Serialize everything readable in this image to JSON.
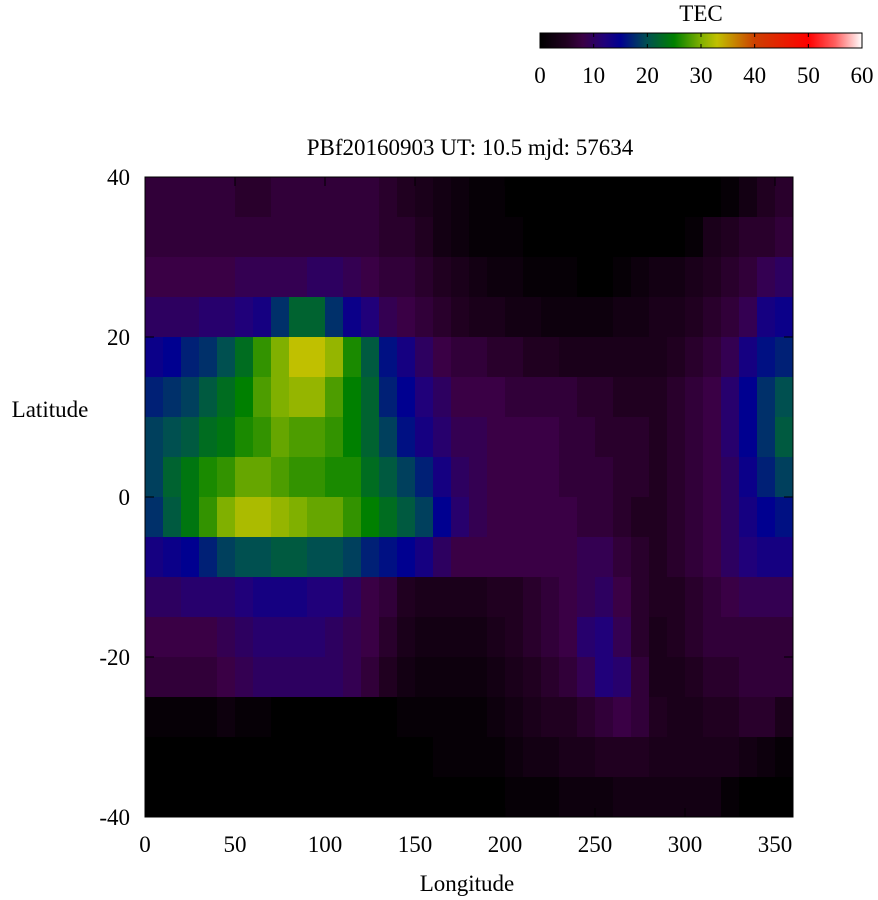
{
  "chart_data": {
    "type": "heatmap",
    "title": "PBf20160903  UT: 10.5  mjd: 57634",
    "xlabel": "Longitude",
    "ylabel": "Latitude",
    "xlim": [
      0,
      360
    ],
    "ylim": [
      -40,
      40
    ],
    "x_ticks": [
      "0",
      "50",
      "100",
      "150",
      "200",
      "250",
      "300",
      "350"
    ],
    "x_tick_values": [
      0,
      50,
      100,
      150,
      200,
      250,
      300,
      350
    ],
    "y_ticks": [
      "-40",
      "-20",
      "0",
      "20",
      "40"
    ],
    "y_tick_values": [
      -40,
      -20,
      0,
      20,
      40
    ],
    "grid": false,
    "colorbar": {
      "label": "TEC",
      "range": [
        0,
        60
      ],
      "ticks": [
        "0",
        "10",
        "20",
        "30",
        "40",
        "50",
        "60"
      ],
      "tick_values": [
        0,
        10,
        20,
        30,
        40,
        50,
        60
      ],
      "placement": "top-right",
      "colormap": [
        [
          0,
          "#000000"
        ],
        [
          5,
          "#200020"
        ],
        [
          8,
          "#3a0045"
        ],
        [
          12,
          "#20007a"
        ],
        [
          15,
          "#000090"
        ],
        [
          20,
          "#005050"
        ],
        [
          25,
          "#008000"
        ],
        [
          30,
          "#80b000"
        ],
        [
          33,
          "#c0c000"
        ],
        [
          40,
          "#cc4000"
        ],
        [
          50,
          "#ff0000"
        ],
        [
          55,
          "#ff6060"
        ],
        [
          60,
          "#ffffff"
        ]
      ]
    },
    "lon": [
      5,
      15,
      25,
      35,
      45,
      55,
      65,
      75,
      85,
      95,
      105,
      115,
      125,
      135,
      145,
      155,
      165,
      175,
      185,
      195,
      205,
      215,
      225,
      235,
      245,
      255,
      265,
      275,
      285,
      295,
      305,
      315,
      325,
      335,
      345,
      355
    ],
    "lat": [
      37.5,
      32.5,
      27.5,
      22.5,
      17.5,
      12.5,
      7.5,
      2.5,
      -2.5,
      -7.5,
      -12.5,
      -17.5,
      -22.5,
      -27.5,
      -32.5,
      -37.5
    ],
    "values": [
      [
        7,
        7,
        7,
        7,
        7,
        6,
        6,
        7,
        7,
        7,
        7,
        7,
        7,
        6,
        5,
        4,
        3,
        2,
        1,
        1,
        0,
        0,
        0,
        0,
        0,
        0,
        0,
        0,
        0,
        0,
        0,
        0,
        1,
        3,
        5,
        6
      ],
      [
        7,
        7,
        7,
        7,
        7,
        7,
        7,
        7,
        7,
        7,
        7,
        7,
        7,
        6,
        6,
        5,
        3,
        2,
        1,
        1,
        1,
        0,
        0,
        0,
        0,
        0,
        0,
        0,
        0,
        0,
        1,
        4,
        5,
        6,
        6,
        7
      ],
      [
        8,
        8,
        8,
        8,
        8,
        9,
        9,
        9,
        9,
        10,
        10,
        9,
        8,
        7,
        7,
        6,
        5,
        4,
        3,
        2,
        2,
        1,
        1,
        1,
        0,
        0,
        1,
        2,
        3,
        3,
        4,
        5,
        6,
        7,
        9,
        10
      ],
      [
        10,
        10,
        10,
        11,
        11,
        12,
        13,
        18,
        22,
        22,
        18,
        14,
        12,
        9,
        8,
        7,
        6,
        5,
        4,
        4,
        3,
        3,
        2,
        2,
        2,
        2,
        3,
        3,
        4,
        4,
        5,
        6,
        7,
        9,
        13,
        14
      ],
      [
        14,
        15,
        17,
        18,
        20,
        23,
        27,
        30,
        33,
        33,
        31,
        26,
        21,
        16,
        13,
        10,
        8,
        7,
        7,
        6,
        6,
        5,
        5,
        4,
        4,
        4,
        4,
        4,
        4,
        5,
        6,
        7,
        9,
        13,
        16,
        17
      ],
      [
        17,
        18,
        19,
        21,
        23,
        25,
        28,
        30,
        31,
        31,
        28,
        25,
        22,
        17,
        15,
        12,
        10,
        8,
        8,
        8,
        7,
        7,
        7,
        7,
        6,
        6,
        5,
        5,
        5,
        6,
        7,
        8,
        11,
        15,
        18,
        20
      ],
      [
        19,
        20,
        21,
        23,
        24,
        26,
        27,
        29,
        28,
        28,
        27,
        25,
        22,
        19,
        16,
        13,
        11,
        9,
        9,
        8,
        8,
        8,
        8,
        7,
        7,
        6,
        6,
        6,
        5,
        6,
        7,
        8,
        11,
        15,
        18,
        21
      ],
      [
        19,
        22,
        24,
        26,
        27,
        29,
        29,
        28,
        27,
        27,
        26,
        26,
        23,
        21,
        19,
        17,
        13,
        10,
        9,
        8,
        8,
        8,
        8,
        7,
        7,
        7,
        6,
        6,
        5,
        6,
        7,
        8,
        10,
        14,
        17,
        19
      ],
      [
        18,
        21,
        24,
        27,
        30,
        32,
        32,
        31,
        30,
        29,
        29,
        27,
        25,
        23,
        21,
        19,
        15,
        11,
        9,
        8,
        8,
        8,
        8,
        8,
        7,
        7,
        6,
        5,
        5,
        6,
        7,
        8,
        10,
        13,
        15,
        16
      ],
      [
        13,
        14,
        15,
        17,
        19,
        20,
        20,
        21,
        21,
        20,
        20,
        19,
        17,
        16,
        15,
        13,
        10,
        8,
        8,
        8,
        8,
        8,
        8,
        8,
        9,
        9,
        7,
        6,
        5,
        6,
        7,
        8,
        10,
        12,
        13,
        13
      ],
      [
        10,
        10,
        11,
        11,
        11,
        12,
        13,
        13,
        13,
        12,
        12,
        10,
        8,
        7,
        5,
        4,
        4,
        4,
        4,
        5,
        5,
        6,
        7,
        8,
        9,
        10,
        8,
        6,
        5,
        5,
        6,
        7,
        8,
        9,
        9,
        9
      ],
      [
        8,
        8,
        8,
        8,
        9,
        10,
        11,
        11,
        11,
        11,
        10,
        9,
        8,
        6,
        4,
        3,
        3,
        3,
        3,
        4,
        5,
        6,
        7,
        8,
        11,
        12,
        9,
        6,
        4,
        5,
        6,
        7,
        7,
        7,
        7,
        7
      ],
      [
        7,
        7,
        7,
        7,
        8,
        9,
        10,
        10,
        10,
        10,
        10,
        9,
        7,
        5,
        3,
        2,
        2,
        2,
        2,
        3,
        4,
        5,
        6,
        7,
        9,
        12,
        11,
        7,
        4,
        4,
        5,
        6,
        6,
        7,
        7,
        7
      ],
      [
        1,
        1,
        1,
        1,
        2,
        1,
        1,
        0,
        0,
        0,
        0,
        0,
        0,
        0,
        1,
        1,
        1,
        1,
        1,
        2,
        3,
        4,
        5,
        5,
        6,
        7,
        8,
        7,
        5,
        4,
        4,
        5,
        5,
        6,
        6,
        4
      ],
      [
        0,
        0,
        0,
        0,
        0,
        0,
        0,
        0,
        0,
        0,
        0,
        0,
        0,
        0,
        0,
        0,
        1,
        1,
        1,
        1,
        2,
        3,
        3,
        4,
        4,
        5,
        5,
        5,
        4,
        4,
        4,
        4,
        4,
        3,
        2,
        1
      ],
      [
        0,
        0,
        0,
        0,
        0,
        0,
        0,
        0,
        0,
        0,
        0,
        0,
        0,
        0,
        0,
        0,
        0,
        0,
        0,
        0,
        1,
        1,
        1,
        2,
        2,
        2,
        3,
        3,
        3,
        3,
        3,
        3,
        1,
        0,
        0,
        0
      ]
    ]
  }
}
